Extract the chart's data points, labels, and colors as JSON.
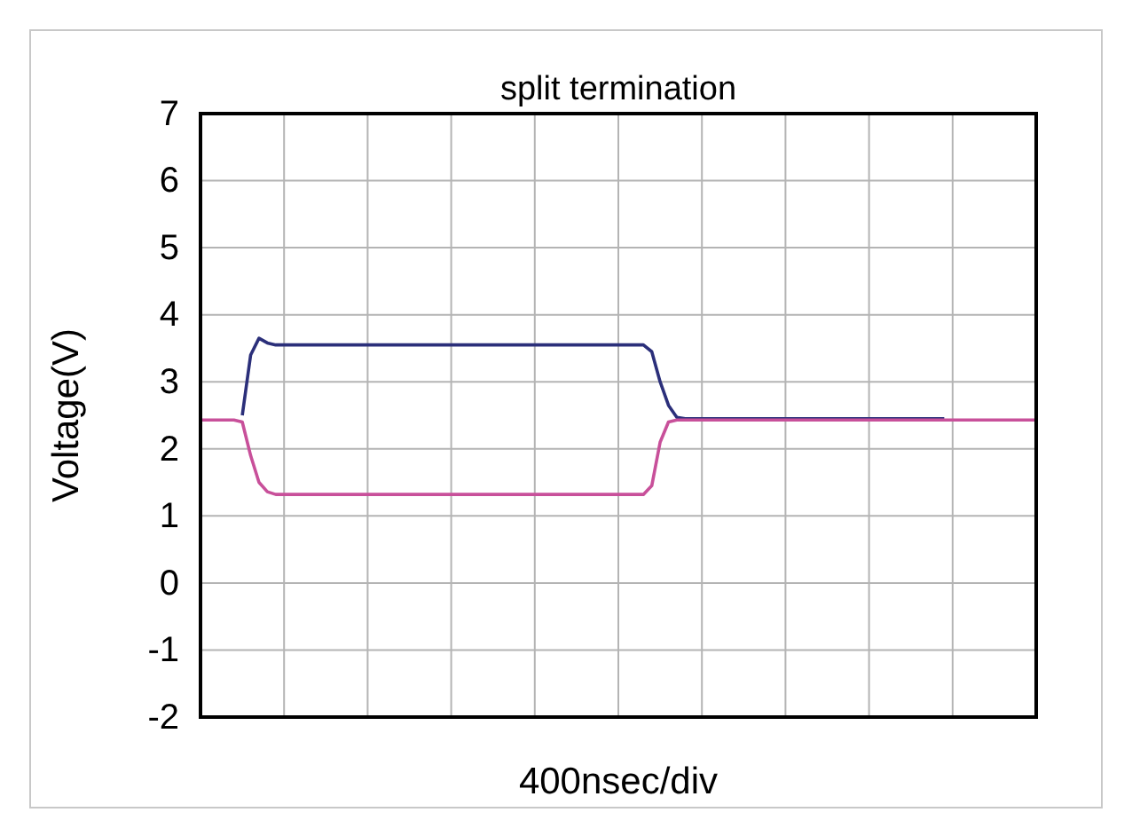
{
  "chart_data": {
    "type": "line",
    "title": "split termination",
    "xlabel": "400nsec/div",
    "ylabel": "Voltage(V)",
    "categories": [
      null,
      null,
      null,
      null,
      null,
      null,
      null,
      null,
      null,
      null,
      null,
      null,
      null,
      null,
      null,
      null,
      null,
      null,
      null,
      null,
      null,
      null,
      null,
      null,
      null,
      null,
      null,
      null,
      null,
      null,
      null,
      null,
      null,
      null,
      null,
      null,
      null,
      null,
      null,
      null,
      null,
      null,
      null,
      null,
      null,
      null,
      null,
      null,
      null,
      null,
      null,
      null,
      null,
      null,
      null,
      null,
      null,
      null,
      null,
      null,
      null,
      null,
      null,
      null,
      null,
      null,
      null,
      null,
      null,
      null,
      null,
      null,
      null,
      null,
      null,
      null,
      null,
      null,
      null,
      null,
      null,
      null,
      null,
      null,
      null,
      null,
      null,
      null,
      null,
      null,
      null,
      null,
      null,
      null,
      null,
      null,
      null,
      null,
      null,
      null,
      null
    ],
    "series": [
      {
        "color": "#2b2f7a",
        "values": [
          null,
          null,
          null,
          null,
          null,
          2.5,
          3.4,
          3.65,
          3.58,
          3.55,
          3.55,
          3.55,
          3.55,
          3.55,
          3.55,
          3.55,
          3.55,
          3.55,
          3.55,
          3.55,
          3.55,
          3.55,
          3.55,
          3.55,
          3.55,
          3.55,
          3.55,
          3.55,
          3.55,
          3.55,
          3.55,
          3.55,
          3.55,
          3.55,
          3.55,
          3.55,
          3.55,
          3.55,
          3.55,
          3.55,
          3.55,
          3.55,
          3.55,
          3.55,
          3.55,
          3.55,
          3.55,
          3.55,
          3.55,
          3.55,
          3.55,
          3.55,
          3.55,
          3.55,
          3.45,
          3.0,
          2.65,
          2.47,
          2.45,
          2.45,
          2.45,
          2.45,
          2.45,
          2.45,
          2.45,
          2.45,
          2.45,
          2.45,
          2.45,
          2.45,
          2.45,
          2.45,
          2.45,
          2.45,
          2.45,
          2.45,
          2.45,
          2.45,
          2.45,
          2.45,
          2.45,
          2.45,
          2.45,
          2.45,
          2.45,
          2.45,
          2.45,
          2.45,
          2.45,
          2.45,
          null,
          null,
          null,
          null,
          null,
          null,
          null,
          null,
          null,
          null,
          null
        ]
      },
      {
        "color": "#c8509a",
        "values": [
          2.43,
          2.43,
          2.43,
          2.43,
          2.43,
          2.4,
          1.9,
          1.5,
          1.36,
          1.32,
          1.32,
          1.32,
          1.32,
          1.32,
          1.32,
          1.32,
          1.32,
          1.32,
          1.32,
          1.32,
          1.32,
          1.32,
          1.32,
          1.32,
          1.32,
          1.32,
          1.32,
          1.32,
          1.32,
          1.32,
          1.32,
          1.32,
          1.32,
          1.32,
          1.32,
          1.32,
          1.32,
          1.32,
          1.32,
          1.32,
          1.32,
          1.32,
          1.32,
          1.32,
          1.32,
          1.32,
          1.32,
          1.32,
          1.32,
          1.32,
          1.32,
          1.32,
          1.32,
          1.32,
          1.45,
          2.1,
          2.4,
          2.43,
          2.43,
          2.43,
          2.43,
          2.43,
          2.43,
          2.43,
          2.43,
          2.43,
          2.43,
          2.43,
          2.43,
          2.43,
          2.43,
          2.43,
          2.43,
          2.43,
          2.43,
          2.43,
          2.43,
          2.43,
          2.43,
          2.43,
          2.43,
          2.43,
          2.43,
          2.43,
          2.43,
          2.43,
          2.43,
          2.43,
          2.43,
          2.43,
          2.43,
          2.43,
          2.43,
          2.43,
          2.43,
          2.43,
          2.43,
          2.43,
          2.43,
          2.43,
          2.43
        ]
      }
    ],
    "ylim": [
      -2,
      7
    ],
    "yticks": [
      -2,
      -1,
      0,
      1,
      2,
      3,
      4,
      5,
      6,
      7
    ],
    "grid": true,
    "tick_labels": "y",
    "marker": "none",
    "line_style": "solid"
  }
}
